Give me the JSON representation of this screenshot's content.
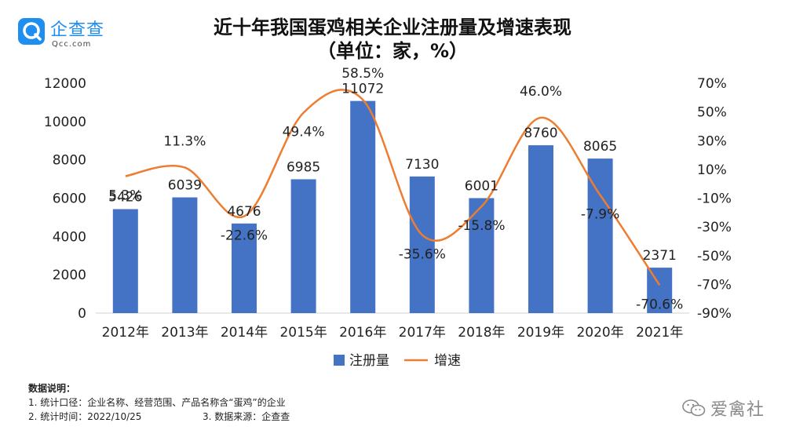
{
  "brand": {
    "name": "企查查",
    "domain": "Qcc.com"
  },
  "title": {
    "line1": "近十年我国蛋鸡相关企业注册量及增速表现",
    "line2": "（单位：家，%）"
  },
  "chart_data": {
    "type": "bar",
    "categories": [
      "2012年",
      "2013年",
      "2014年",
      "2015年",
      "2016年",
      "2017年",
      "2018年",
      "2019年",
      "2020年",
      "2021年"
    ],
    "series": [
      {
        "name": "注册量",
        "type": "bar",
        "axis": "left",
        "color": "#4472c4",
        "values": [
          5426,
          6039,
          4676,
          6985,
          11072,
          7130,
          6001,
          8760,
          8065,
          2371
        ]
      },
      {
        "name": "增速",
        "type": "line",
        "axis": "right",
        "color": "#ed7d31",
        "values": [
          5.3,
          11.3,
          -22.6,
          49.4,
          58.5,
          -35.6,
          -15.8,
          46.0,
          -7.9,
          -70.6
        ],
        "labels": [
          "5.3%",
          "11.3%",
          "-22.6%",
          "49.4%",
          "58.5%",
          "-35.6%",
          "-15.8%",
          "46.0%",
          "-7.9%",
          "-70.6%"
        ]
      }
    ],
    "ylim_left": [
      0,
      12000
    ],
    "yticks_left": [
      "0",
      "2000",
      "4000",
      "6000",
      "8000",
      "10000",
      "12000"
    ],
    "ylim_right": [
      -90,
      70
    ],
    "yticks_right": [
      "-90%",
      "-70%",
      "-50%",
      "-30%",
      "-10%",
      "10%",
      "30%",
      "50%",
      "70%"
    ],
    "grid": false,
    "legend": "bottom-center"
  },
  "notes": {
    "heading": "数据说明：",
    "item1": "1. 统计口径：企业名称、经营范围、产品名称含“蛋鸡”的企业",
    "item2": "2. 统计时间：2022/10/25",
    "item3": "3. 数据来源：企查查"
  },
  "watermark": {
    "icon": "wechat-icon",
    "text": "爱禽社"
  }
}
